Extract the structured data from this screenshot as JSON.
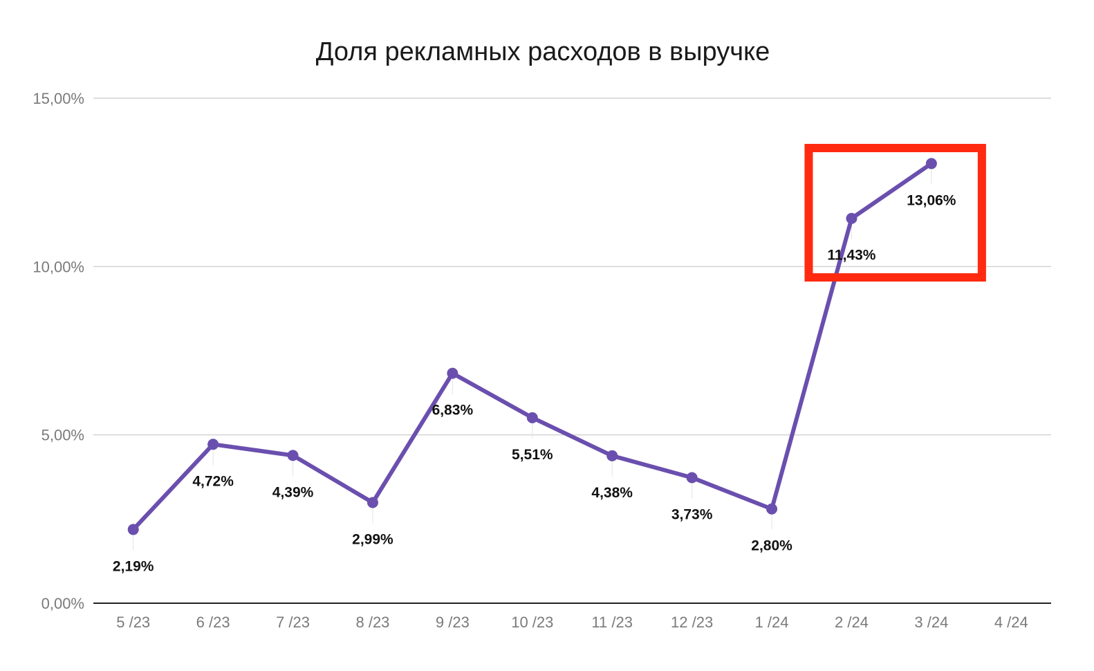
{
  "chart_data": {
    "type": "line",
    "title": "Доля рекламных расходов в выручке",
    "xlabel": "",
    "ylabel": "",
    "categories": [
      "5 /23",
      "6 /23",
      "7 /23",
      "8 /23",
      "9 /23",
      "10 /23",
      "11 /23",
      "12 /23",
      "1 /24",
      "2 /24",
      "3 /24",
      "4 /24"
    ],
    "series": [
      {
        "values": [
          2.19,
          4.72,
          4.39,
          2.99,
          6.83,
          5.51,
          4.38,
          3.73,
          2.8,
          11.43,
          13.06,
          null
        ],
        "labels": [
          "2,19%",
          "4,72%",
          "4,39%",
          "2,99%",
          "6,83%",
          "5,51%",
          "4,38%",
          "3,73%",
          "2,80%",
          "11,43%",
          "13,06%",
          ""
        ],
        "color": "#6a4fae"
      }
    ],
    "ylim": [
      0,
      15
    ],
    "yticks": [
      0,
      5,
      10,
      15
    ],
    "ytick_labels": [
      "0,00%",
      "5,00%",
      "10,00%",
      "15,00%"
    ],
    "grid": true,
    "highlight": {
      "from_category": "2 /24",
      "to_category": "3 /24",
      "color": "#ff2a10"
    }
  }
}
